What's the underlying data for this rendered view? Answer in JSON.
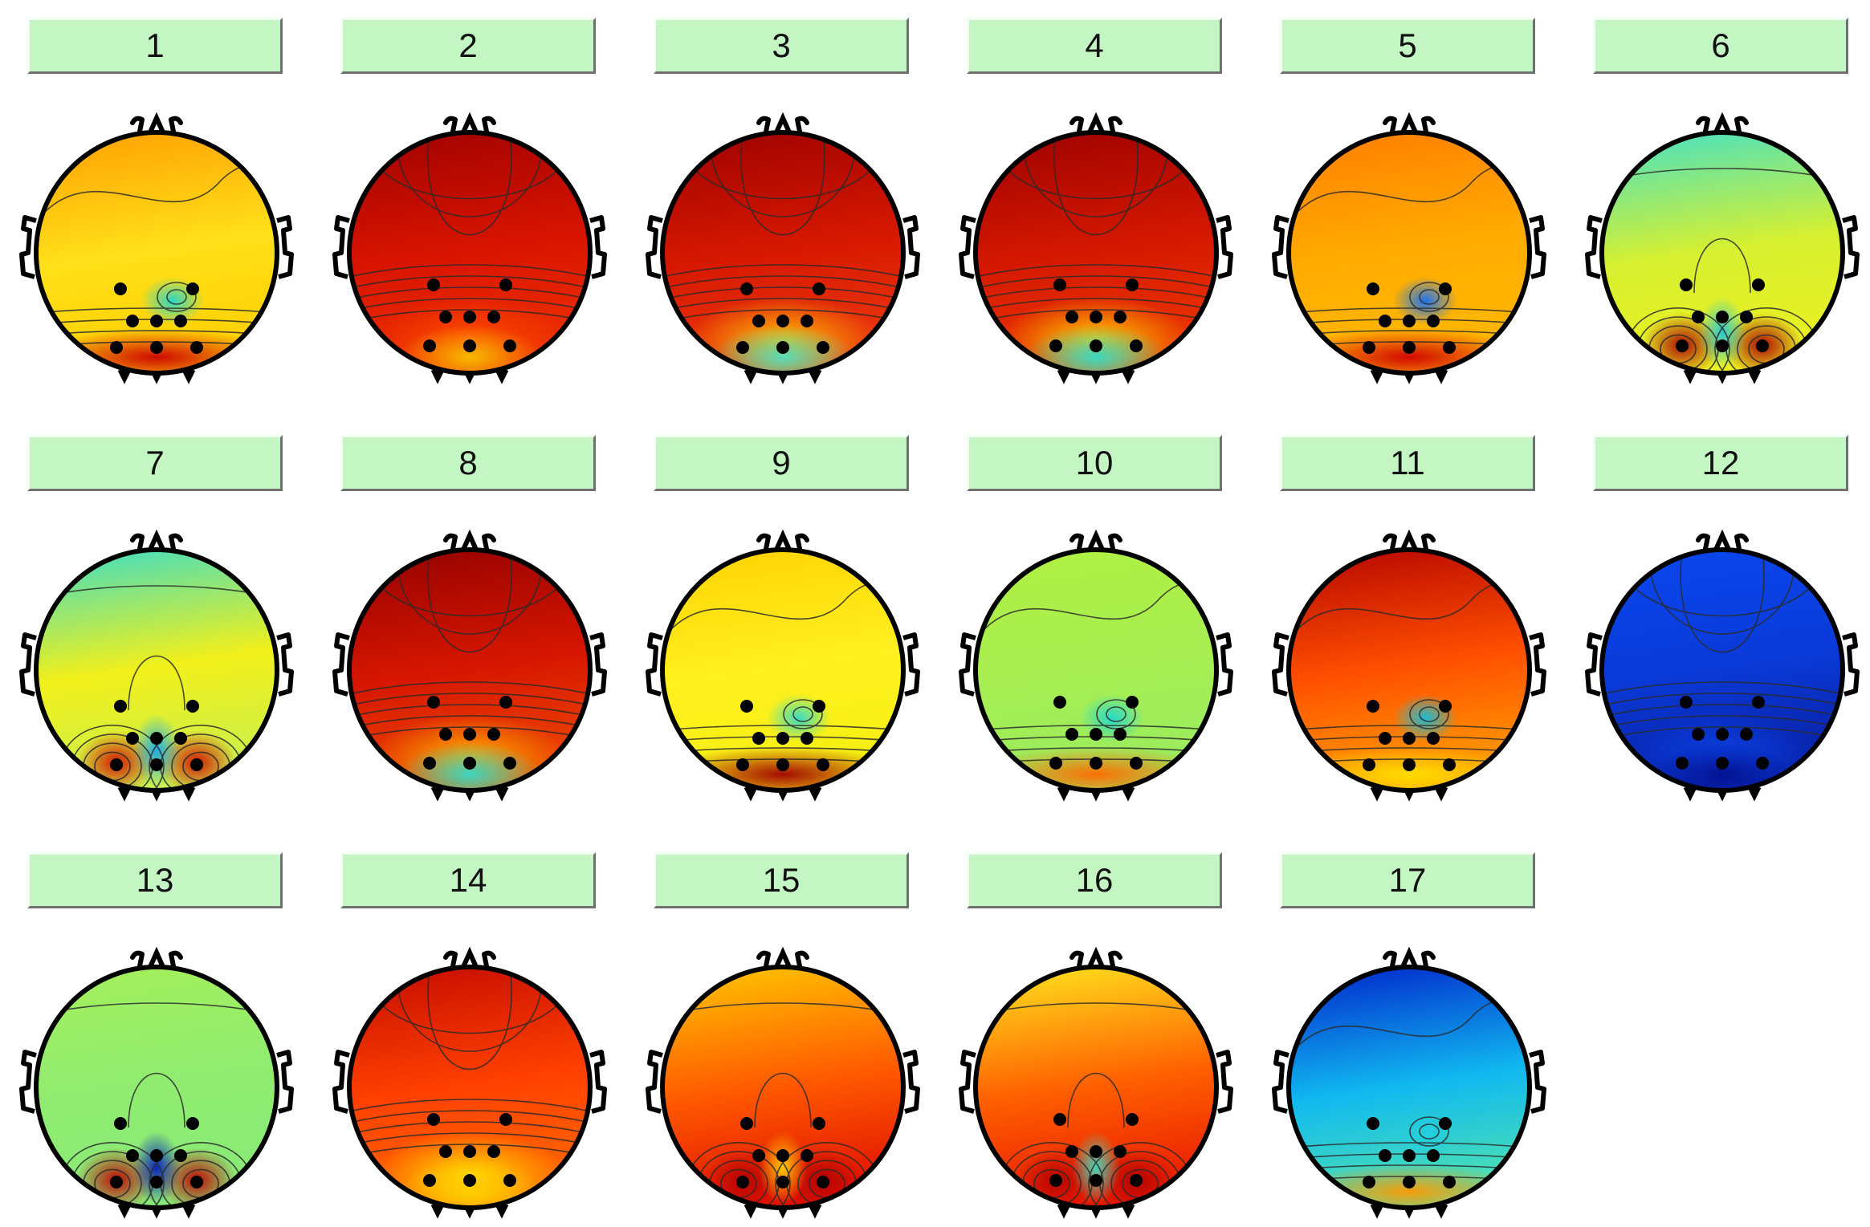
{
  "components": [
    {
      "label": "1",
      "colors": [
        "#ff9a00",
        "#ffe01a",
        "#ffcf00"
      ],
      "warm": "#cc0000",
      "cool": "#20d8d0",
      "contour": "low-band"
    },
    {
      "label": "2",
      "colors": [
        "#9c0000",
        "#d81400",
        "#ef3200"
      ],
      "warm": "#ff4a00",
      "cool": "#f6c000",
      "contour": "top-dome"
    },
    {
      "label": "3",
      "colors": [
        "#9a0000",
        "#d61800",
        "#ee3a10"
      ],
      "warm": "#ffc400",
      "cool": "#4fe0c0",
      "contour": "top-dome"
    },
    {
      "label": "4",
      "colors": [
        "#9a0000",
        "#d41800",
        "#ef3800"
      ],
      "warm": "#ffd200",
      "cool": "#30dccc",
      "contour": "top-dome"
    },
    {
      "label": "5",
      "colors": [
        "#ff7a00",
        "#ffac00",
        "#ffb800"
      ],
      "warm": "#d00000",
      "cool": "#1070ff",
      "contour": "low-band"
    },
    {
      "label": "6",
      "colors": [
        "#3be0d0",
        "#d6f030",
        "#ecf020"
      ],
      "warm": "#aa0000",
      "cool": "#20c8d8",
      "contour": "bottom-pair"
    },
    {
      "label": "7",
      "colors": [
        "#30dcd2",
        "#f2f01a",
        "#c8f050"
      ],
      "warm": "#d01000",
      "cool": "#10a8f0",
      "contour": "bottom-pair"
    },
    {
      "label": "8",
      "colors": [
        "#900000",
        "#d61600",
        "#ef4a00"
      ],
      "warm": "#ffb000",
      "cool": "#30d8c8",
      "contour": "top-dome"
    },
    {
      "label": "9",
      "colors": [
        "#ffd000",
        "#fff020",
        "#f4f010"
      ],
      "warm": "#a00000",
      "cool": "#30dcc8",
      "contour": "low-band"
    },
    {
      "label": "10",
      "colors": [
        "#b0f040",
        "#a8ee52",
        "#98ec60"
      ],
      "warm": "#ff6a00",
      "cool": "#20d8d0",
      "contour": "low-band"
    },
    {
      "label": "11",
      "colors": [
        "#b00000",
        "#ff5000",
        "#ffa000"
      ],
      "warm": "#ffe000",
      "cool": "#10c0e0",
      "contour": "low-band"
    },
    {
      "label": "12",
      "colors": [
        "#0a48f0",
        "#0a3ad8",
        "#081ea0"
      ],
      "warm": "#0a44e8",
      "cool": "#041090",
      "contour": "top-dome"
    },
    {
      "label": "13",
      "colors": [
        "#a6f05a",
        "#90ec70",
        "#88ea78"
      ],
      "warm": "#c00000",
      "cool": "#0018c0",
      "contour": "bottom-pair"
    },
    {
      "label": "14",
      "colors": [
        "#c00800",
        "#ff4000",
        "#ff6a00"
      ],
      "warm": "#ffe000",
      "cool": "#ffd000",
      "contour": "top-dome"
    },
    {
      "label": "15",
      "colors": [
        "#ffd000",
        "#ff5a00",
        "#e01000"
      ],
      "warm": "#b00000",
      "cool": "#ffd200",
      "contour": "bottom-pair"
    },
    {
      "label": "16",
      "colors": [
        "#fff020",
        "#ff6000",
        "#e81800"
      ],
      "warm": "#b00000",
      "cool": "#40dcc0",
      "contour": "bottom-pair"
    },
    {
      "label": "17",
      "colors": [
        "#0018c8",
        "#10b8f0",
        "#50e4b0"
      ],
      "warm": "#ff9a00",
      "cool": "#20d0e0",
      "contour": "low-band"
    }
  ]
}
